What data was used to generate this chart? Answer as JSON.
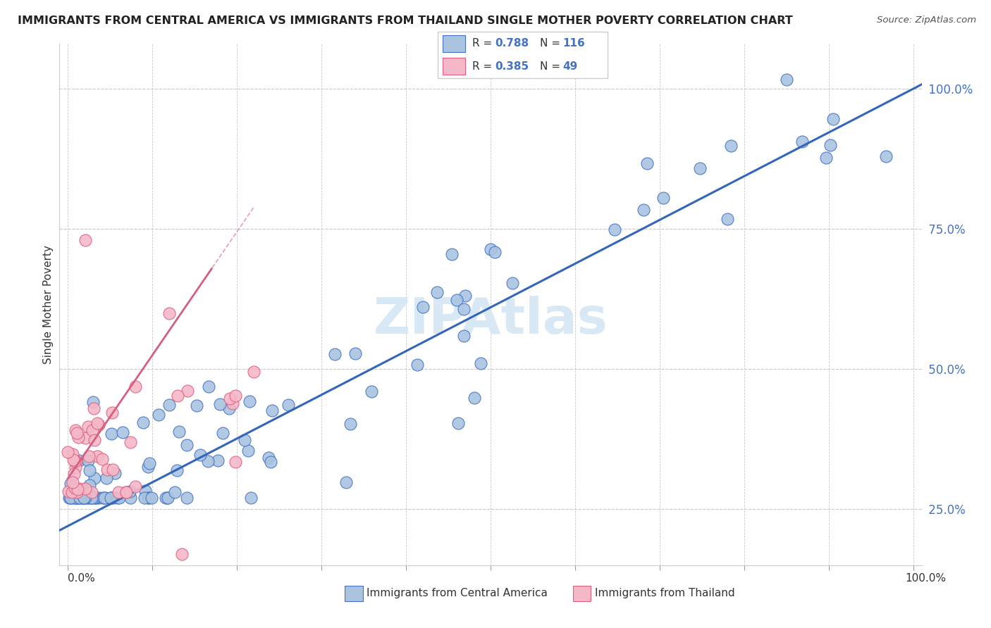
{
  "title": "IMMIGRANTS FROM CENTRAL AMERICA VS IMMIGRANTS FROM THAILAND SINGLE MOTHER POVERTY CORRELATION CHART",
  "source": "Source: ZipAtlas.com",
  "ylabel": "Single Mother Poverty",
  "legend_label1": "Immigrants from Central America",
  "legend_label2": "Immigrants from Thailand",
  "R1": "0.788",
  "N1": "116",
  "R2": "0.385",
  "N2": "49",
  "color_blue": "#aac4e0",
  "color_blue_dark": "#4472c4",
  "color_blue_text": "#4472c4",
  "color_pink": "#f4b8c8",
  "color_pink_dark": "#e0607e",
  "color_pink_line": "#d46080",
  "color_blue_line": "#3366bb",
  "color_grid": "#c8c8c8",
  "watermark_color": "#d8e8f4",
  "xlim_min": -0.01,
  "xlim_max": 1.01,
  "ylim_min": 0.15,
  "ylim_max": 1.08,
  "blue_intercept": 0.22,
  "blue_slope": 0.78,
  "pink_intercept": 0.305,
  "pink_slope": 2.2
}
